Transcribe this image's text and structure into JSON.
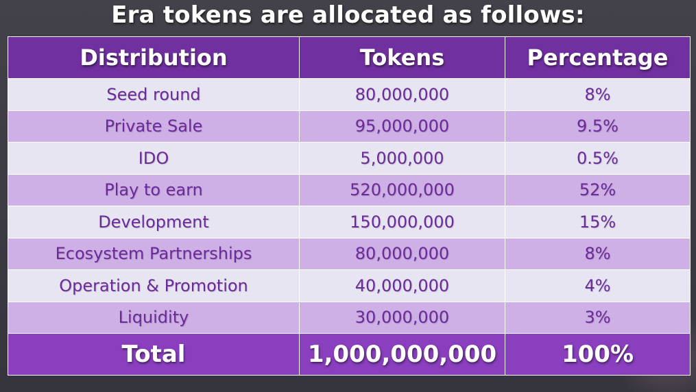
{
  "title": "Era tokens are allocated as follows:",
  "chart_data": {
    "type": "table",
    "title": "Era tokens are allocated as follows:",
    "columns": [
      "Distribution",
      "Tokens",
      "Percentage"
    ],
    "rows": [
      {
        "distribution": "Seed round",
        "tokens": "80,000,000",
        "percentage": "8%"
      },
      {
        "distribution": "Private Sale",
        "tokens": "95,000,000",
        "percentage": "9.5%"
      },
      {
        "distribution": "IDO",
        "tokens": "5,000,000",
        "percentage": "0.5%"
      },
      {
        "distribution": "Play to earn",
        "tokens": "520,000,000",
        "percentage": "52%"
      },
      {
        "distribution": "Development",
        "tokens": "150,000,000",
        "percentage": "15%"
      },
      {
        "distribution": "Ecosystem Partnerships",
        "tokens": "80,000,000",
        "percentage": "8%"
      },
      {
        "distribution": "Operation & Promotion",
        "tokens": "40,000,000",
        "percentage": "4%"
      },
      {
        "distribution": "Liquidity",
        "tokens": "30,000,000",
        "percentage": "3%"
      }
    ],
    "total": {
      "distribution": "Total",
      "tokens": "1,000,000,000",
      "percentage": "100%"
    }
  },
  "colors": {
    "background": "#3f3d46",
    "header": "#7030a0",
    "row_light": "#e8e5f2",
    "row_dark": "#cfb0e6",
    "footer": "#8a3fbf",
    "row_text": "#6a2a9a"
  }
}
